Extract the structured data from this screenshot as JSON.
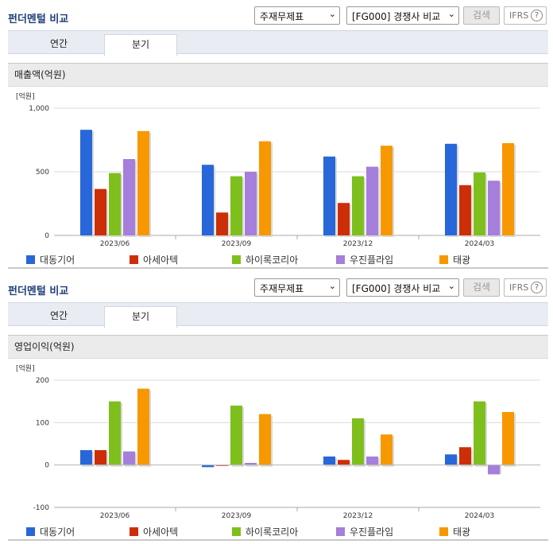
{
  "panels": [
    {
      "title": "펀더멘털 비교",
      "select_statement": "주재무제표",
      "select_compare": "[FG000] 경쟁사 비교",
      "search_label": "검색",
      "ifrs_label": "IFRS",
      "help_symbol": "?",
      "tabs": [
        {
          "label": "연간"
        },
        {
          "label": "분기"
        }
      ],
      "active_tab": "분기",
      "subtitle": "매출액(억원)"
    },
    {
      "title": "펀더멘털 비교",
      "select_statement": "주재무제표",
      "select_compare": "[FG000] 경쟁사 비교",
      "search_label": "검색",
      "ifrs_label": "IFRS",
      "help_symbol": "?",
      "tabs": [
        {
          "label": "연간"
        },
        {
          "label": "분기"
        }
      ],
      "active_tab": "분기",
      "subtitle": "영업이익(억원)"
    }
  ],
  "colors": {
    "대동기어": "#2767d9",
    "아세아텍": "#cc2e08",
    "하이록코리아": "#7fbf1d",
    "우진플라임": "#a67edb",
    "태광": "#f79800"
  },
  "chart_data": [
    {
      "type": "bar",
      "unit_label": "[억원]",
      "categories": [
        "2023/06",
        "2023/09",
        "2023/12",
        "2024/03"
      ],
      "ylim": [
        0,
        1000
      ],
      "yticks": [
        0,
        500,
        1000
      ],
      "ytick_labels": [
        "0",
        "500",
        "1,000"
      ],
      "series": [
        {
          "name": "대동기어",
          "values": [
            830,
            555,
            620,
            720
          ]
        },
        {
          "name": "아세아텍",
          "values": [
            365,
            180,
            255,
            395
          ]
        },
        {
          "name": "하이록코리아",
          "values": [
            490,
            465,
            465,
            495
          ]
        },
        {
          "name": "우진플라임",
          "values": [
            600,
            500,
            540,
            430
          ]
        },
        {
          "name": "태광",
          "values": [
            820,
            740,
            705,
            725
          ]
        }
      ]
    },
    {
      "type": "bar",
      "unit_label": "[억원]",
      "categories": [
        "2023/06",
        "2023/09",
        "2023/12",
        "2024/03"
      ],
      "ylim": [
        -100,
        200
      ],
      "yticks": [
        -100,
        0,
        100,
        200
      ],
      "ytick_labels": [
        "-100",
        "0",
        "100",
        "200"
      ],
      "series": [
        {
          "name": "대동기어",
          "values": [
            35,
            -5,
            20,
            25
          ]
        },
        {
          "name": "아세아텍",
          "values": [
            35,
            -2,
            12,
            42
          ]
        },
        {
          "name": "하이록코리아",
          "values": [
            150,
            140,
            110,
            150
          ]
        },
        {
          "name": "우진플라임",
          "values": [
            32,
            5,
            20,
            -22
          ]
        },
        {
          "name": "태광",
          "values": [
            180,
            120,
            72,
            125
          ]
        }
      ]
    }
  ]
}
